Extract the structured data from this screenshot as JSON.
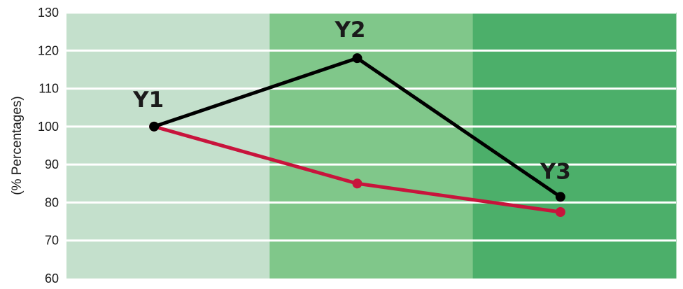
{
  "chart_data": {
    "type": "line",
    "title": "",
    "xlabel": "",
    "ylabel": "(% Percentages)",
    "ylim": [
      60,
      130
    ],
    "yticks": [
      60,
      70,
      80,
      90,
      100,
      110,
      120,
      130
    ],
    "grid": true,
    "background_bands": [
      "#c4e0cc",
      "#80c78a",
      "#4caf6a"
    ],
    "categories": [
      "Y1",
      "Y2",
      "Y3"
    ],
    "series": [
      {
        "values": [
          100,
          118,
          81.5
        ],
        "color": "#000000"
      },
      {
        "values": [
          100,
          85,
          77.5
        ],
        "color": "#c8143c"
      }
    ],
    "point_labels": [
      "Y1",
      "Y2",
      "Y3"
    ]
  }
}
